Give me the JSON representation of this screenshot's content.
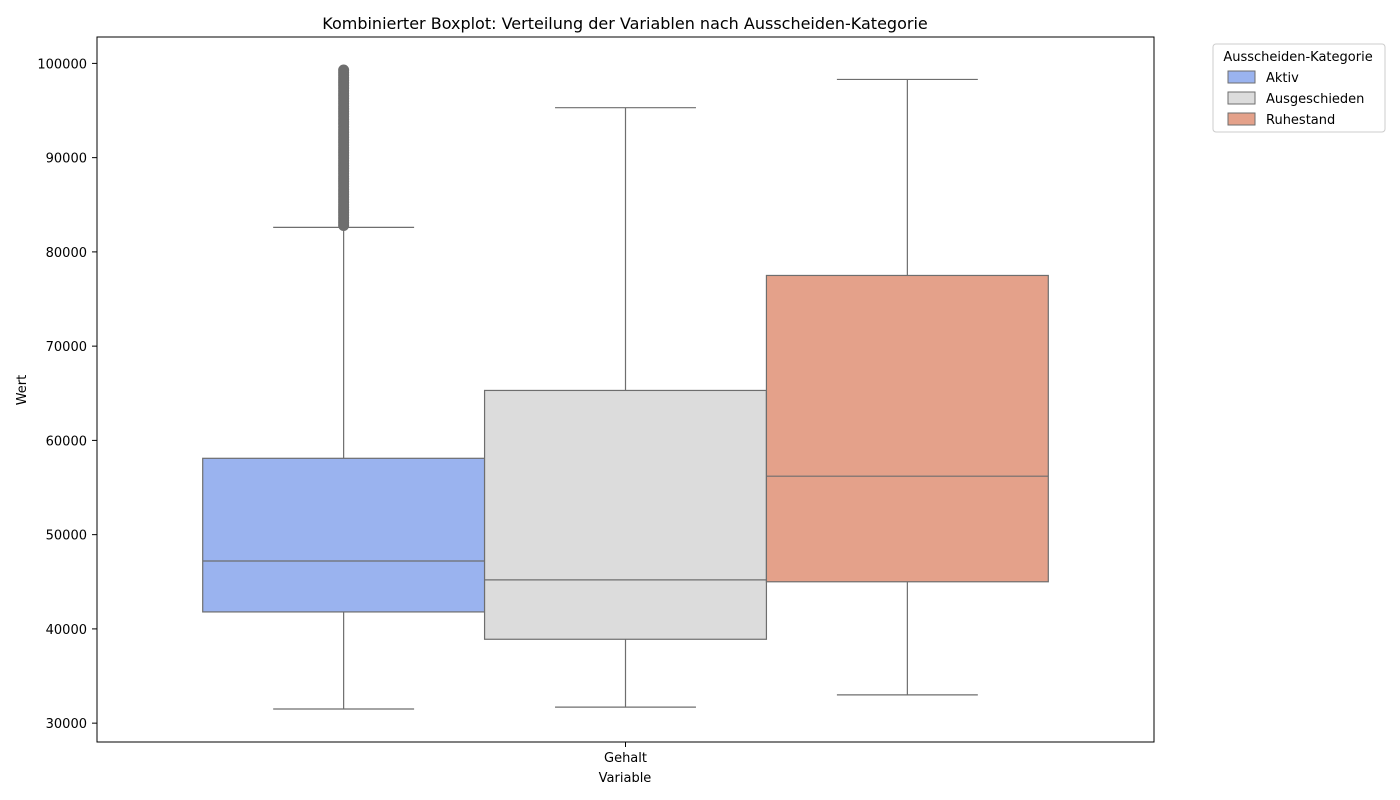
{
  "chart_data": {
    "type": "boxplot",
    "title": "Kombinierter Boxplot: Verteilung der Variablen nach Ausscheiden-Kategorie",
    "xlabel": "Variable",
    "ylabel": "Wert",
    "categories": [
      "Gehalt"
    ],
    "ylim": [
      28000,
      102800
    ],
    "yticks": [
      30000,
      40000,
      50000,
      60000,
      70000,
      80000,
      90000,
      100000
    ],
    "grid": false,
    "legend": {
      "title": "Ausscheiden-Kategorie",
      "position": "outside-top-right"
    },
    "series": [
      {
        "name": "Aktiv",
        "color": "#9ab3ef",
        "whisker_low": 31500,
        "q1": 41800,
        "median": 47200,
        "q3": 58100,
        "whisker_high": 82600,
        "outliers_low": 82800,
        "outliers_high": 99300
      },
      {
        "name": "Ausgeschieden",
        "color": "#dcdcdc",
        "whisker_low": 31700,
        "q1": 38900,
        "median": 45200,
        "q3": 65300,
        "whisker_high": 95300
      },
      {
        "name": "Ruhestand",
        "color": "#e4a18a",
        "whisker_low": 33000,
        "q1": 45000,
        "median": 56200,
        "q3": 77500,
        "whisker_high": 98300
      }
    ]
  }
}
